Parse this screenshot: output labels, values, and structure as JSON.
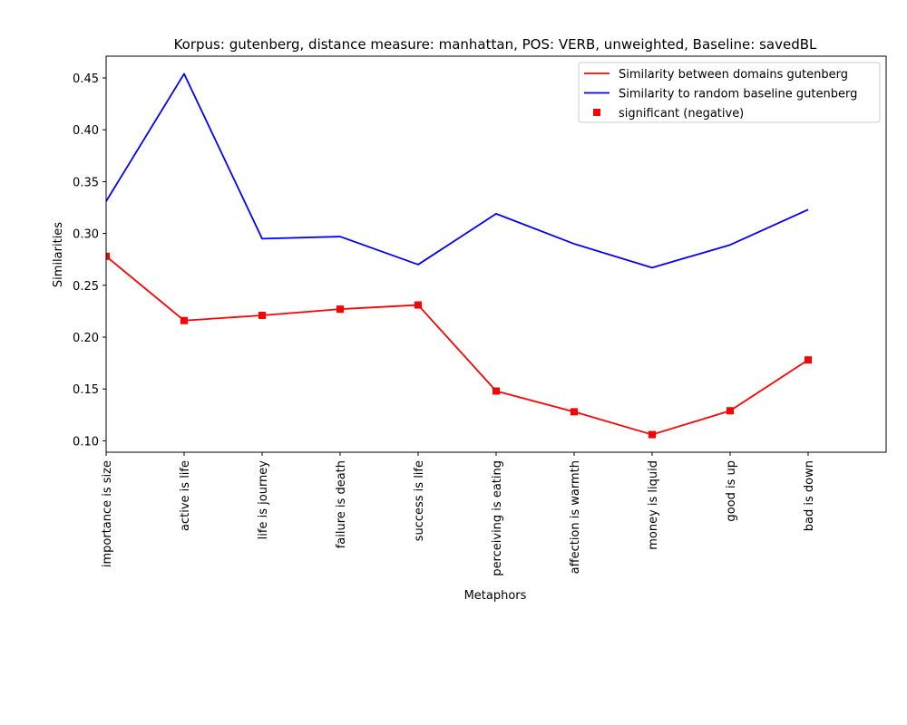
{
  "chart_data": {
    "type": "line",
    "title": "Korpus: gutenberg, distance measure: manhattan, POS: VERB, unweighted, Baseline: savedBL",
    "xlabel": "Metaphors",
    "ylabel": "Similarities",
    "categories": [
      "importance is size",
      "active is life",
      "life is journey",
      "failure is death",
      "success is life",
      "perceiving is eating",
      "affection is warmth",
      "money is liquid",
      "good is up",
      "bad is down"
    ],
    "ylim": [
      0.089,
      0.471
    ],
    "yticks": [
      "0.10",
      "0.15",
      "0.20",
      "0.25",
      "0.30",
      "0.35",
      "0.40",
      "0.45"
    ],
    "grid": false,
    "legend_position": "top-right",
    "series": [
      {
        "name": "Similarity between domains gutenberg",
        "color": "#ff0000",
        "values": [
          0.278,
          0.216,
          0.221,
          0.227,
          0.231,
          0.148,
          0.128,
          0.106,
          0.129,
          0.178
        ]
      },
      {
        "name": "Similarity to random baseline gutenberg",
        "color": "#0000ff",
        "values": [
          0.331,
          0.454,
          0.295,
          0.297,
          0.27,
          0.319,
          0.29,
          0.267,
          0.289,
          0.323
        ]
      }
    ],
    "markers": {
      "name": "significant (negative)",
      "color": "#ff0000",
      "series_index": 0,
      "indices": [
        0,
        1,
        2,
        3,
        4,
        5,
        6,
        7,
        8,
        9
      ]
    }
  }
}
